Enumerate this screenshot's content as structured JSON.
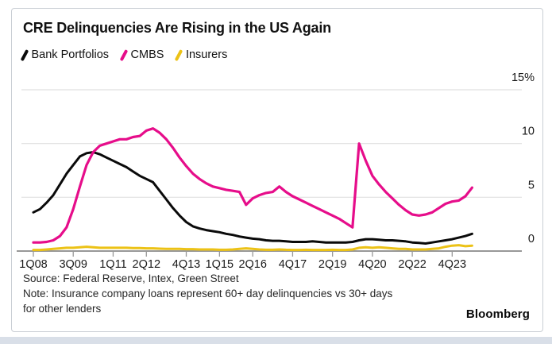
{
  "header": {
    "title": "CRE Delinquencies Are Rising in the US Again"
  },
  "legend": {
    "items": [
      {
        "label": "Bank Portfolios",
        "color": "#0a0a0a"
      },
      {
        "label": "CMBS",
        "color": "#e60d8a"
      },
      {
        "label": "Insurers",
        "color": "#ecc216"
      }
    ]
  },
  "footer": {
    "source_line": "Source: Federal Reserve, Intex, Green Street",
    "note_line1": "Note: Insurance company loans represent 60+ day delinquencies vs 30+ days",
    "note_line2": "for other lenders",
    "brand": "Bloomberg"
  },
  "chart_data": {
    "type": "line",
    "title": "CRE Delinquencies Are Rising in the US Again",
    "unit": "%",
    "x_description": "Quarterly data from 1Q08 to 3Q24 (index 0 = 1Q08)",
    "x_start_quarter": "1Q08",
    "x_end_quarter": "3Q24",
    "grid": "horizontal",
    "legend_position": "top-left",
    "y_axis": {
      "position": "right",
      "ylim": [
        0,
        15
      ],
      "ticks": [
        {
          "value": 15,
          "label": "15%"
        },
        {
          "value": 10,
          "label": "10"
        },
        {
          "value": 5,
          "label": "5"
        },
        {
          "value": 0,
          "label": "0"
        }
      ]
    },
    "x_tick_labels": [
      {
        "label": "1Q08",
        "q": 0
      },
      {
        "label": "3Q09",
        "q": 6
      },
      {
        "label": "1Q11",
        "q": 12
      },
      {
        "label": "2Q12",
        "q": 17
      },
      {
        "label": "4Q13",
        "q": 23
      },
      {
        "label": "1Q15",
        "q": 28
      },
      {
        "label": "2Q16",
        "q": 33
      },
      {
        "label": "4Q17",
        "q": 39
      },
      {
        "label": "2Q19",
        "q": 45
      },
      {
        "label": "4Q20",
        "q": 51
      },
      {
        "label": "2Q22",
        "q": 57
      },
      {
        "label": "4Q23",
        "q": 63
      }
    ],
    "series": [
      {
        "name": "Bank Portfolios",
        "color": "#0a0a0a",
        "values": [
          3.6,
          3.9,
          4.5,
          5.2,
          6.2,
          7.2,
          8.0,
          8.8,
          9.1,
          9.2,
          9.0,
          8.7,
          8.4,
          8.1,
          7.8,
          7.4,
          7.0,
          6.7,
          6.4,
          5.6,
          4.8,
          4.0,
          3.3,
          2.7,
          2.3,
          2.1,
          1.95,
          1.85,
          1.75,
          1.6,
          1.5,
          1.35,
          1.25,
          1.15,
          1.1,
          1.0,
          0.95,
          0.95,
          0.9,
          0.85,
          0.85,
          0.85,
          0.9,
          0.85,
          0.8,
          0.8,
          0.8,
          0.8,
          0.85,
          1.0,
          1.1,
          1.1,
          1.05,
          1.0,
          1.0,
          0.95,
          0.9,
          0.8,
          0.75,
          0.7,
          0.8,
          0.9,
          1.0,
          1.1,
          1.25,
          1.4,
          1.6
        ]
      },
      {
        "name": "CMBS",
        "color": "#e60d8a",
        "values": [
          0.8,
          0.8,
          0.85,
          1.0,
          1.4,
          2.2,
          3.9,
          6.0,
          8.0,
          9.2,
          9.8,
          10.0,
          10.2,
          10.4,
          10.4,
          10.6,
          10.7,
          11.2,
          11.4,
          11.0,
          10.4,
          9.6,
          8.7,
          7.9,
          7.2,
          6.7,
          6.3,
          6.0,
          5.85,
          5.7,
          5.6,
          5.5,
          4.3,
          4.9,
          5.2,
          5.4,
          5.5,
          6.0,
          5.5,
          5.1,
          4.8,
          4.5,
          4.2,
          3.9,
          3.6,
          3.3,
          3.0,
          2.6,
          2.2,
          10.0,
          8.4,
          7.0,
          6.2,
          5.5,
          4.9,
          4.3,
          3.8,
          3.4,
          3.3,
          3.4,
          3.6,
          4.0,
          4.4,
          4.6,
          4.7,
          5.1,
          5.9
        ]
      },
      {
        "name": "Insurers",
        "color": "#ecc216",
        "values": [
          0.1,
          0.1,
          0.15,
          0.2,
          0.25,
          0.3,
          0.3,
          0.35,
          0.4,
          0.35,
          0.3,
          0.3,
          0.3,
          0.3,
          0.3,
          0.28,
          0.28,
          0.25,
          0.25,
          0.22,
          0.2,
          0.2,
          0.2,
          0.18,
          0.18,
          0.15,
          0.15,
          0.15,
          0.12,
          0.12,
          0.15,
          0.2,
          0.25,
          0.2,
          0.15,
          0.12,
          0.12,
          0.15,
          0.12,
          0.1,
          0.1,
          0.12,
          0.1,
          0.1,
          0.1,
          0.12,
          0.1,
          0.1,
          0.15,
          0.3,
          0.35,
          0.3,
          0.35,
          0.3,
          0.25,
          0.2,
          0.2,
          0.15,
          0.15,
          0.15,
          0.2,
          0.25,
          0.4,
          0.5,
          0.55,
          0.45,
          0.5
        ]
      }
    ]
  }
}
